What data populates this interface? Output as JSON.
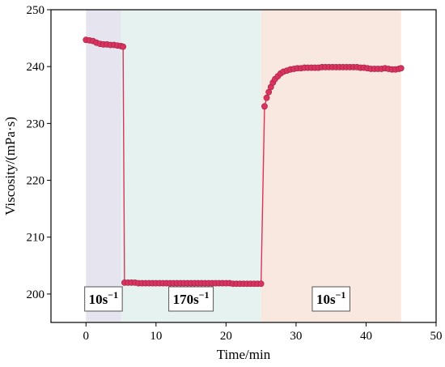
{
  "chart_data": {
    "type": "line",
    "title": "",
    "xlabel": "Time/min",
    "ylabel": "Viscosity/(mPa·s)",
    "xlim": [
      -5,
      50
    ],
    "ylim": [
      195,
      250
    ],
    "xticks": [
      0,
      10,
      20,
      30,
      40,
      50
    ],
    "yticks": [
      200,
      210,
      220,
      230,
      240,
      250
    ],
    "grid": false,
    "legend": "none",
    "regions": [
      {
        "x_start": 0,
        "x_end": 5,
        "color": "#e6e4ef",
        "label_value": "10",
        "label_unit": "s",
        "label_exp": "−1"
      },
      {
        "x_start": 5,
        "x_end": 25,
        "color": "#e5f2ef",
        "label_value": "170",
        "label_unit": "s",
        "label_exp": "−1"
      },
      {
        "x_start": 25,
        "x_end": 45,
        "color": "#f8e8df",
        "label_value": "10",
        "label_unit": "s",
        "label_exp": "−1"
      }
    ],
    "series": [
      {
        "color": "#d9345f",
        "x": [
          0,
          0.5,
          1,
          1.5,
          2,
          2.5,
          3,
          3.5,
          4,
          4.5,
          5,
          5.3,
          5.5,
          6,
          6.5,
          7,
          7.5,
          8,
          8.5,
          9,
          9.5,
          10,
          10.5,
          11,
          11.5,
          12,
          12.5,
          13,
          13.5,
          14,
          14.5,
          15,
          15.5,
          16,
          16.5,
          17,
          17.5,
          18,
          18.5,
          19,
          19.5,
          20,
          20.5,
          21,
          21.5,
          22,
          22.5,
          23,
          23.5,
          24,
          24.5,
          25,
          25.5,
          25.8,
          26.1,
          26.4,
          26.7,
          27,
          27.4,
          27.8,
          28.2,
          28.7,
          29.2,
          29.7,
          30.2,
          30.7,
          31.2,
          31.7,
          32.2,
          32.7,
          33.2,
          33.7,
          34.2,
          34.7,
          35.2,
          35.7,
          36.2,
          36.7,
          37.2,
          37.7,
          38.2,
          38.7,
          39.2,
          39.7,
          40.2,
          40.7,
          41.2,
          41.7,
          42.2,
          42.7,
          43.2,
          43.7,
          44.2,
          44.7,
          45
        ],
        "y": [
          244.7,
          244.6,
          244.5,
          244.2,
          244.0,
          243.9,
          243.9,
          243.8,
          243.8,
          243.7,
          243.6,
          243.5,
          202.0,
          202.0,
          202.0,
          202.0,
          201.9,
          201.9,
          201.9,
          201.9,
          201.9,
          201.9,
          201.9,
          201.9,
          201.9,
          201.9,
          201.9,
          201.9,
          201.9,
          201.9,
          201.9,
          201.9,
          201.9,
          201.9,
          201.9,
          201.9,
          201.9,
          201.9,
          201.9,
          201.9,
          201.9,
          201.9,
          201.9,
          201.8,
          201.8,
          201.8,
          201.8,
          201.8,
          201.8,
          201.8,
          201.8,
          201.8,
          233.0,
          234.5,
          235.5,
          236.4,
          237.2,
          237.8,
          238.3,
          238.8,
          239.1,
          239.3,
          239.5,
          239.6,
          239.7,
          239.7,
          239.8,
          239.8,
          239.8,
          239.8,
          239.8,
          239.9,
          239.9,
          239.9,
          239.9,
          239.9,
          239.9,
          239.9,
          239.9,
          239.9,
          239.9,
          239.9,
          239.8,
          239.8,
          239.7,
          239.6,
          239.6,
          239.6,
          239.6,
          239.7,
          239.6,
          239.5,
          239.5,
          239.6,
          239.7
        ]
      }
    ]
  }
}
